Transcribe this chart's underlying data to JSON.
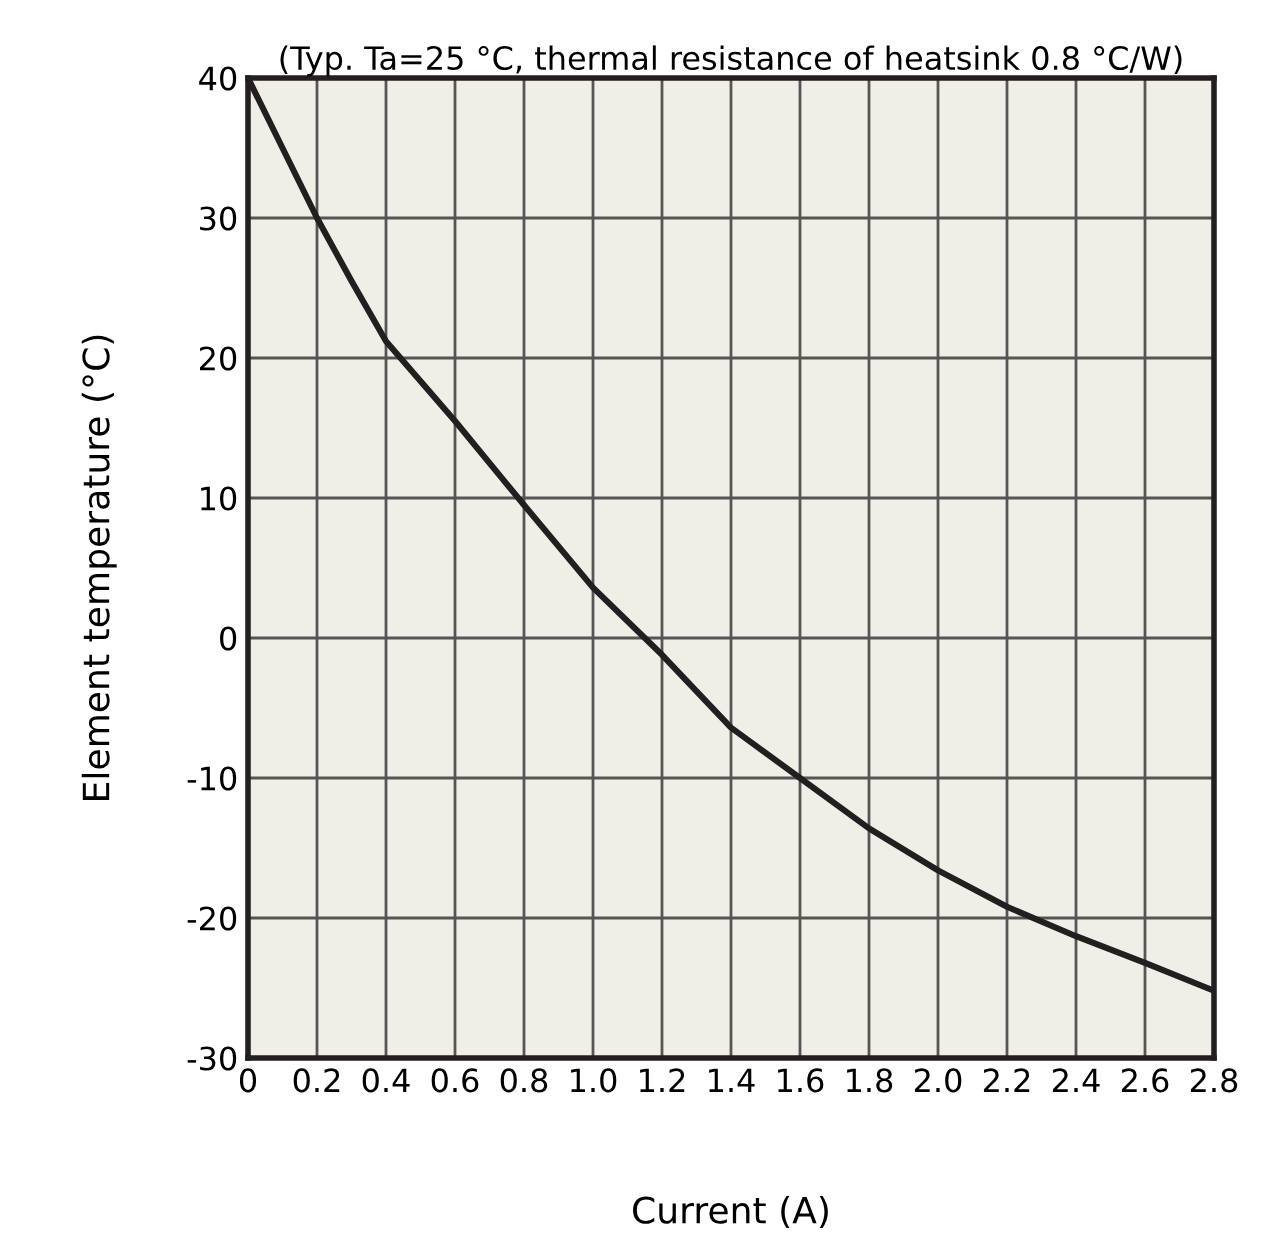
{
  "chart_data": {
    "type": "line",
    "title": "(Typ. Ta=25 °C, thermal resistance of heatsink 0.8 °C/W)",
    "xlabel": "Current (A)",
    "ylabel": "Element temperature (°C)",
    "x": [
      0,
      0.1,
      0.2,
      0.3,
      0.4,
      0.6,
      0.8,
      1.0,
      1.2,
      1.4,
      1.6,
      1.8,
      2.0,
      2.2,
      2.4,
      2.6,
      2.8
    ],
    "series": [
      {
        "color": "#231f20",
        "values": [
          40,
          35,
          30,
          25.5,
          21.2,
          15.5,
          9.5,
          3.6,
          -1.2,
          -6.4,
          -10,
          -13.6,
          -16.6,
          -19.2,
          -21.3,
          -23.2,
          -25.2
        ]
      }
    ],
    "xlim": [
      0,
      2.8
    ],
    "ylim": [
      -30,
      40
    ],
    "xticks": [
      {
        "value": 0,
        "label": "0"
      },
      0.2,
      0.4,
      0.6,
      0.8,
      {
        "value": 1,
        "label": "1.0"
      },
      1.2,
      1.4,
      1.6,
      1.8,
      {
        "value": 2,
        "label": "2.0"
      },
      2.2,
      2.4,
      2.6,
      2.8
    ],
    "yticks": [
      -30,
      -20,
      -10,
      0,
      10,
      20,
      30,
      40
    ],
    "grid": true,
    "line_style": "solid",
    "marker": "none"
  }
}
